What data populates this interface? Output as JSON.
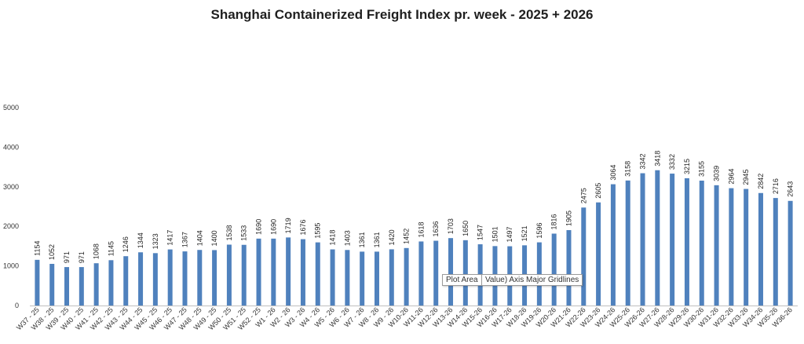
{
  "chart_data": {
    "type": "bar",
    "title": "Shanghai Containerized Freight Index pr. week - 2025 + 2026",
    "xlabel": "",
    "ylabel": "",
    "ylim": [
      0,
      5000
    ],
    "yticks": [
      0,
      1000,
      2000,
      3000,
      4000,
      5000
    ],
    "grid": false,
    "legend": "none",
    "bar_color": "#4f81bd",
    "categories": [
      "W37 - 25",
      "W38 - 25",
      "W39 - 25",
      "W40 - 25",
      "W41 - 25",
      "W42 - 25",
      "W43 - 25",
      "W44 - 25",
      "W45 - 25",
      "W46 - 25",
      "W47 - 25",
      "W48 - 25",
      "W49 - 25",
      "W50 - 25",
      "W51 - 25",
      "W52 - 25",
      "W1 - 26",
      "W2 - 26",
      "W3 - 26",
      "W4 - 26",
      "W5 - 26",
      "W6 - 26",
      "W7 - 26",
      "W8 - 26",
      "W9 - 26",
      "W10-26",
      "W11-26",
      "W12-26",
      "W13-26",
      "W14-26",
      "W15-26",
      "W16-26",
      "W17-26",
      "W18-26",
      "W19-26",
      "W20-26",
      "W21-26",
      "W22-26",
      "W23-26",
      "W24-26",
      "W25-26",
      "W26-26",
      "W27-26",
      "W28-26",
      "W29-26",
      "W30-26",
      "W31-26",
      "W32-26",
      "W33-26",
      "W34-26",
      "W35-26",
      "W36-26"
    ],
    "values": [
      1154,
      1052,
      971,
      971,
      1068,
      1145,
      1246,
      1344,
      1323,
      1417,
      1367,
      1404,
      1400,
      1538,
      1533,
      1690,
      1690,
      1719,
      1676,
      1595,
      1418,
      1403,
      1361,
      1361,
      1420,
      1452,
      1618,
      1636,
      1703,
      1650,
      1547,
      1501,
      1497,
      1521,
      1596,
      1816,
      1905,
      2475,
      2605,
      3064,
      3158,
      3342,
      3418,
      3332,
      3215,
      3155,
      3039,
      2964,
      2945,
      2842,
      2716,
      2643
    ]
  },
  "tooltips": {
    "plot_area": "Plot Area",
    "gridlines": "Value) Axis Major Gridlines"
  }
}
